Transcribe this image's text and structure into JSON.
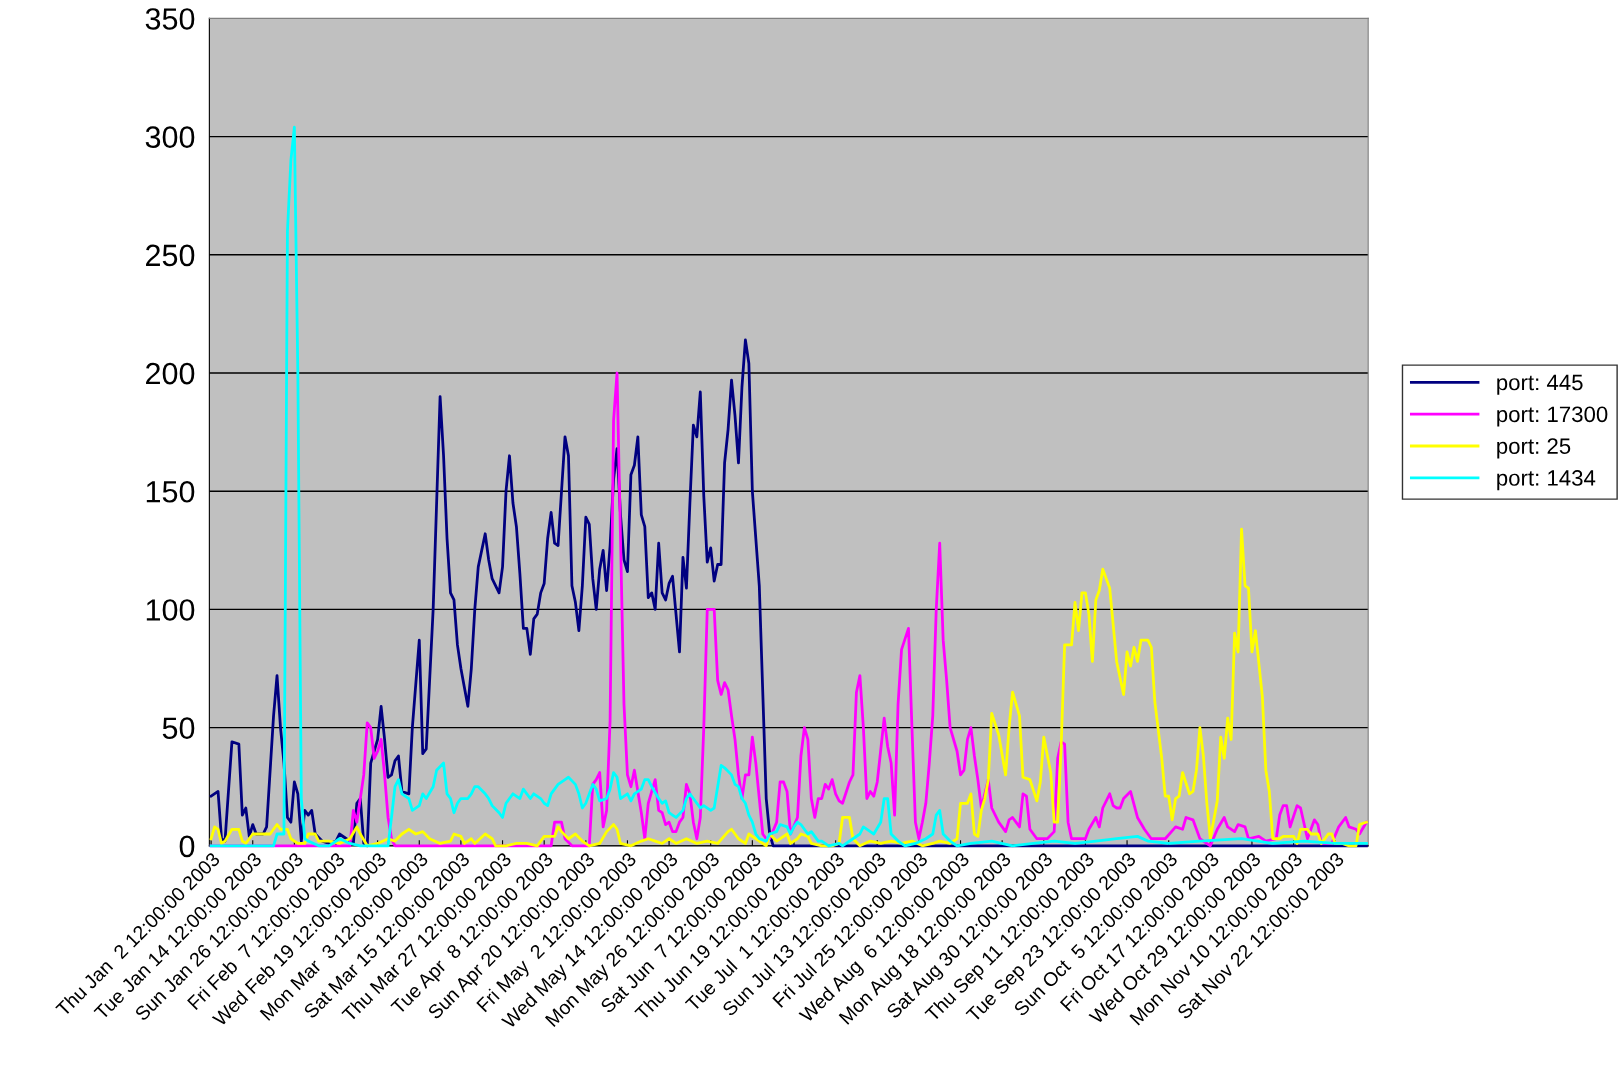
{
  "chart_data": {
    "type": "line",
    "ylim": [
      0,
      350
    ],
    "yticks": [
      0,
      50,
      100,
      150,
      200,
      250,
      300,
      350
    ],
    "xlim": [
      "2003-01-01T12:00",
      "2003-12-01T12:00"
    ],
    "xticks": [
      {
        "value": "2003-01-02",
        "label": "Thu Jan  2 12:00:00 2003"
      },
      {
        "value": "2003-01-14",
        "label": "Tue Jan 14 12:00:00 2003"
      },
      {
        "value": "2003-01-26",
        "label": "Sun Jan 26 12:00:00 2003"
      },
      {
        "value": "2003-02-07",
        "label": "Fri Feb  7 12:00:00 2003"
      },
      {
        "value": "2003-02-19",
        "label": "Wed Feb 19 12:00:00 2003"
      },
      {
        "value": "2003-03-03",
        "label": "Mon Mar  3 12:00:00 2003"
      },
      {
        "value": "2003-03-15",
        "label": "Sat Mar 15 12:00:00 2003"
      },
      {
        "value": "2003-03-27",
        "label": "Thu Mar 27 12:00:00 2003"
      },
      {
        "value": "2003-04-08",
        "label": "Tue Apr  8 12:00:00 2003"
      },
      {
        "value": "2003-04-20",
        "label": "Sun Apr 20 12:00:00 2003"
      },
      {
        "value": "2003-05-02",
        "label": "Fri May  2 12:00:00 2003"
      },
      {
        "value": "2003-05-14",
        "label": "Wed May 14 12:00:00 2003"
      },
      {
        "value": "2003-05-26",
        "label": "Mon May 26 12:00:00 2003"
      },
      {
        "value": "2003-06-07",
        "label": "Sat Jun  7 12:00:00 2003"
      },
      {
        "value": "2003-06-19",
        "label": "Thu Jun 19 12:00:00 2003"
      },
      {
        "value": "2003-07-01",
        "label": "Tue Jul  1 12:00:00 2003"
      },
      {
        "value": "2003-07-13",
        "label": "Sun Jul 13 12:00:00 2003"
      },
      {
        "value": "2003-07-25",
        "label": "Fri Jul 25 12:00:00 2003"
      },
      {
        "value": "2003-08-06",
        "label": "Wed Aug  6 12:00:00 2003"
      },
      {
        "value": "2003-08-18",
        "label": "Mon Aug 18 12:00:00 2003"
      },
      {
        "value": "2003-08-30",
        "label": "Sat Aug 30 12:00:00 2003"
      },
      {
        "value": "2003-09-11",
        "label": "Thu Sep 11 12:00:00 2003"
      },
      {
        "value": "2003-09-23",
        "label": "Tue Sep 23 12:00:00 2003"
      },
      {
        "value": "2003-10-05",
        "label": "Sun Oct  5 12:00:00 2003"
      },
      {
        "value": "2003-10-17",
        "label": "Fri Oct 17 12:00:00 2003"
      },
      {
        "value": "2003-10-29",
        "label": "Wed Oct 29 12:00:00 2003"
      },
      {
        "value": "2003-11-10",
        "label": "Mon Nov 10 12:00:00 2003"
      },
      {
        "value": "2003-11-22",
        "label": "Sat Nov 22 12:00:00 2003"
      }
    ],
    "grid": "y",
    "legend": "right",
    "marker": "none",
    "line_style": "solid",
    "series": [
      {
        "name": "port: 445",
        "color": "#000080",
        "x": [
          "2003-01-02",
          "2003-01-04",
          "2003-01-05",
          "2003-01-06",
          "2003-01-08",
          "2003-01-10",
          "2003-01-11",
          "2003-01-12",
          "2003-01-13",
          "2003-01-14",
          "2003-01-15",
          "2003-01-17",
          "2003-01-18",
          "2003-01-20",
          "2003-01-21",
          "2003-01-22",
          "2003-01-23",
          "2003-01-24",
          "2003-01-25",
          "2003-01-26",
          "2003-01-27",
          "2003-01-28",
          "2003-01-29",
          "2003-01-30",
          "2003-01-31",
          "2003-02-01",
          "2003-02-03",
          "2003-02-05",
          "2003-02-07",
          "2003-02-08",
          "2003-02-10",
          "2003-02-12",
          "2003-02-13",
          "2003-02-14",
          "2003-02-15",
          "2003-02-16",
          "2003-02-17",
          "2003-02-19",
          "2003-02-20",
          "2003-02-21",
          "2003-02-22",
          "2003-02-23",
          "2003-02-24",
          "2003-02-25",
          "2003-02-26",
          "2003-02-28",
          "2003-03-01",
          "2003-03-03",
          "2003-03-04",
          "2003-03-05",
          "2003-03-07",
          "2003-03-09",
          "2003-03-10",
          "2003-03-11",
          "2003-03-12",
          "2003-03-13",
          "2003-03-14",
          "2003-03-15",
          "2003-03-17",
          "2003-03-18",
          "2003-03-19",
          "2003-03-20",
          "2003-03-22",
          "2003-03-23",
          "2003-03-24",
          "2003-03-26",
          "2003-03-27",
          "2003-03-28",
          "2003-03-29",
          "2003-03-30",
          "2003-03-31",
          "2003-04-01",
          "2003-04-02",
          "2003-04-03",
          "2003-04-04",
          "2003-04-05",
          "2003-04-06",
          "2003-04-07",
          "2003-04-08",
          "2003-04-09",
          "2003-04-10",
          "2003-04-11",
          "2003-04-12",
          "2003-04-13",
          "2003-04-14",
          "2003-04-15",
          "2003-04-16",
          "2003-04-17",
          "2003-04-18",
          "2003-04-19",
          "2003-04-20",
          "2003-04-21",
          "2003-04-22",
          "2003-04-23",
          "2003-04-24",
          "2003-04-25",
          "2003-04-26",
          "2003-04-27",
          "2003-04-28",
          "2003-04-29",
          "2003-04-30",
          "2003-05-01",
          "2003-05-02",
          "2003-05-03",
          "2003-05-04",
          "2003-05-05",
          "2003-05-06",
          "2003-05-07",
          "2003-05-08",
          "2003-05-09",
          "2003-05-10",
          "2003-05-11",
          "2003-05-12",
          "2003-05-13",
          "2003-05-14",
          "2003-05-15",
          "2003-05-17",
          "2003-05-18",
          "2003-05-19",
          "2003-05-20",
          "2003-05-21",
          "2003-05-22",
          "2003-05-23",
          "2003-05-24",
          "2003-05-25",
          "2003-05-26",
          "2003-05-27",
          "2003-05-28",
          "2003-05-29",
          "2003-05-30",
          "2003-05-31",
          "2003-06-01",
          "2003-06-02",
          "2003-06-03",
          "2003-06-04",
          "2003-06-05",
          "2003-06-06",
          "2003-06-07",
          "2003-06-09",
          "2003-06-10",
          "2003-06-11",
          "2003-06-12",
          "2003-06-13",
          "2003-07-11",
          "2003-08-10",
          "2003-09-09",
          "2003-10-09",
          "2003-11-08",
          "2003-12-01"
        ],
        "values": [
          21,
          23,
          3,
          2,
          44,
          43,
          13,
          16,
          4,
          9,
          5,
          5,
          8,
          55,
          72,
          50,
          35,
          12,
          10,
          27,
          22,
          2,
          15,
          13,
          15,
          5,
          2,
          1,
          2,
          5,
          3,
          1,
          18,
          20,
          1,
          0,
          35,
          45,
          59,
          45,
          29,
          30,
          36,
          38,
          23,
          22,
          50,
          87,
          39,
          41,
          100,
          190,
          165,
          130,
          107,
          104,
          85,
          75,
          59,
          75,
          100,
          118,
          132,
          121,
          113,
          107,
          118,
          150,
          165,
          145,
          135,
          115,
          92,
          92,
          81,
          96,
          98,
          107,
          111,
          130,
          141,
          128,
          127,
          150,
          173,
          165,
          110,
          103,
          91,
          110,
          139,
          136,
          113,
          100,
          117,
          125,
          108,
          127,
          155,
          168,
          140,
          121,
          116,
          157,
          161,
          173,
          140,
          135,
          105,
          107,
          100,
          128,
          107,
          104,
          111,
          114,
          82,
          122,
          109,
          145,
          178,
          173,
          192,
          148,
          120,
          126,
          112,
          119,
          119,
          162,
          176,
          197,
          182,
          162,
          194,
          214,
          204,
          150,
          110,
          65,
          20,
          5,
          0,
          0,
          0,
          0,
          0,
          0,
          0
        ]
      },
      {
        "name": "port: 17300",
        "color": "#ff00ff",
        "x": [
          "2003-01-02",
          "2003-02-11",
          "2003-02-12",
          "2003-02-13",
          "2003-02-15",
          "2003-02-16",
          "2003-02-17",
          "2003-02-18",
          "2003-02-19",
          "2003-02-20",
          "2003-02-21",
          "2003-02-22",
          "2003-02-23",
          "2003-02-24",
          "2003-04-10",
          "2003-04-11",
          "2003-04-13",
          "2003-04-14",
          "2003-04-16",
          "2003-04-21",
          "2003-04-22",
          "2003-04-23",
          "2003-04-24",
          "2003-04-25",
          "2003-04-26",
          "2003-04-27",
          "2003-04-28",
          "2003-04-29",
          "2003-04-30",
          "2003-05-01",
          "2003-05-02",
          "2003-05-03",
          "2003-05-04",
          "2003-05-05",
          "2003-05-06",
          "2003-05-07",
          "2003-05-08",
          "2003-05-09",
          "2003-05-10",
          "2003-05-11",
          "2003-05-12",
          "2003-05-13",
          "2003-05-14",
          "2003-05-15",
          "2003-05-16",
          "2003-05-17",
          "2003-05-18",
          "2003-05-19",
          "2003-05-20",
          "2003-05-21",
          "2003-05-22",
          "2003-05-23",
          "2003-05-24",
          "2003-05-25",
          "2003-05-27",
          "2003-05-28",
          "2003-05-29",
          "2003-05-30",
          "2003-05-31",
          "2003-06-01",
          "2003-06-02",
          "2003-06-03",
          "2003-06-04",
          "2003-06-05",
          "2003-06-06",
          "2003-06-07",
          "2003-06-08",
          "2003-06-09",
          "2003-06-10",
          "2003-06-11",
          "2003-06-12",
          "2003-06-14",
          "2003-06-15",
          "2003-06-16",
          "2003-06-17",
          "2003-06-18",
          "2003-06-20",
          "2003-06-21",
          "2003-06-22",
          "2003-06-23",
          "2003-06-24",
          "2003-06-25",
          "2003-06-26",
          "2003-06-27",
          "2003-06-28",
          "2003-06-29",
          "2003-06-30",
          "2003-07-01",
          "2003-07-02",
          "2003-07-03",
          "2003-07-05",
          "2003-07-06",
          "2003-07-07",
          "2003-07-08",
          "2003-07-09",
          "2003-07-10",
          "2003-07-11",
          "2003-07-12",
          "2003-07-13",
          "2003-07-15",
          "2003-07-16",
          "2003-07-17",
          "2003-07-18",
          "2003-07-19",
          "2003-07-20",
          "2003-07-22",
          "2003-07-23",
          "2003-07-24",
          "2003-07-25",
          "2003-07-26",
          "2003-07-27",
          "2003-07-28",
          "2003-07-29",
          "2003-07-30",
          "2003-07-31",
          "2003-08-01",
          "2003-08-02",
          "2003-08-03",
          "2003-08-05",
          "2003-08-06",
          "2003-08-07",
          "2003-08-08",
          "2003-08-09",
          "2003-08-10",
          "2003-08-11",
          "2003-08-12",
          "2003-08-13",
          "2003-08-14",
          "2003-08-15",
          "2003-08-17",
          "2003-08-19",
          "2003-08-20",
          "2003-08-21",
          "2003-08-23",
          "2003-08-24",
          "2003-08-25",
          "2003-08-26",
          "2003-08-28",
          "2003-08-31",
          "2003-09-02",
          "2003-09-03",
          "2003-09-04",
          "2003-09-05",
          "2003-09-06",
          "2003-09-07",
          "2003-09-11",
          "2003-09-12",
          "2003-09-14",
          "2003-09-15",
          "2003-09-16",
          "2003-09-18",
          "2003-09-19",
          "2003-09-20",
          "2003-09-21",
          "2003-09-22",
          "2003-09-24",
          "2003-09-26",
          "2003-09-28",
          "2003-09-30",
          "2003-10-02",
          "2003-10-04",
          "2003-10-07",
          "2003-10-09",
          "2003-10-10",
          "2003-10-12",
          "2003-10-14",
          "2003-10-17",
          "2003-10-19",
          "2003-10-21",
          "2003-10-22",
          "2003-10-24",
          "2003-10-25",
          "2003-10-27",
          "2003-10-28",
          "2003-10-31",
          "2003-11-02",
          "2003-11-05",
          "2003-11-06",
          "2003-11-07",
          "2003-11-08",
          "2003-11-09",
          "2003-11-11",
          "2003-11-12",
          "2003-11-14",
          "2003-11-16",
          "2003-11-17",
          "2003-11-18",
          "2003-11-21",
          "2003-11-23",
          "2003-11-25",
          "2003-11-26",
          "2003-11-28",
          "2003-11-29",
          "2003-12-01"
        ],
        "values": [
          0,
          0,
          15,
          10,
          30,
          52,
          50,
          37,
          40,
          45,
          30,
          12,
          3,
          0,
          0,
          10,
          10,
          3,
          0,
          0,
          26,
          28,
          31,
          8,
          15,
          53,
          180,
          200,
          130,
          60,
          30,
          25,
          32,
          23,
          14,
          3,
          18,
          23,
          28,
          15,
          14,
          9,
          10,
          6,
          6,
          10,
          12,
          26,
          22,
          10,
          3,
          12,
          50,
          100,
          100,
          70,
          64,
          69,
          66,
          55,
          45,
          30,
          20,
          30,
          30,
          46,
          35,
          20,
          5,
          3,
          3,
          10,
          27,
          27,
          23,
          5,
          12,
          38,
          50,
          45,
          20,
          12,
          20,
          20,
          26,
          24,
          28,
          22,
          19,
          18,
          27,
          30,
          65,
          72,
          50,
          20,
          23,
          21,
          27,
          54,
          42,
          35,
          13,
          60,
          83,
          92,
          50,
          10,
          3,
          10,
          18,
          35,
          55,
          100,
          128,
          87,
          70,
          50,
          40,
          30,
          32,
          45,
          50,
          38,
          28,
          16,
          22,
          28,
          16,
          10,
          6,
          11,
          12,
          8,
          22,
          21,
          7,
          3,
          3,
          6,
          37,
          44,
          43,
          10,
          3,
          3,
          7,
          12,
          8,
          16,
          22,
          17,
          16,
          16,
          20,
          23,
          12,
          7,
          3,
          3,
          3,
          8,
          7,
          12,
          11,
          3,
          0,
          7,
          12,
          8,
          6,
          9,
          8,
          3,
          4,
          2,
          3,
          13,
          17,
          17,
          8,
          17,
          16,
          3,
          11,
          9,
          1,
          1,
          8,
          12,
          8,
          7,
          5,
          10
        ]
      },
      {
        "name": "port: 25",
        "color": "#ffff00",
        "x": [
          "2003-01-02",
          "2003-01-03",
          "2003-01-04",
          "2003-01-05",
          "2003-01-06",
          "2003-01-08",
          "2003-01-10",
          "2003-01-11",
          "2003-01-12",
          "2003-01-14",
          "2003-01-17",
          "2003-01-19",
          "2003-01-21",
          "2003-01-22",
          "2003-01-24",
          "2003-01-25",
          "2003-01-27",
          "2003-01-29",
          "2003-01-30",
          "2003-02-01",
          "2003-02-02",
          "2003-02-05",
          "2003-02-08",
          "2003-02-11",
          "2003-02-13",
          "2003-02-14",
          "2003-02-16",
          "2003-02-19",
          "2003-02-22",
          "2003-02-24",
          "2003-02-26",
          "2003-02-28",
          "2003-03-02",
          "2003-03-04",
          "2003-03-06",
          "2003-03-09",
          "2003-03-12",
          "2003-03-13",
          "2003-03-15",
          "2003-03-16",
          "2003-03-18",
          "2003-03-19",
          "2003-03-22",
          "2003-03-24",
          "2003-03-25",
          "2003-03-28",
          "2003-03-31",
          "2003-04-03",
          "2003-04-06",
          "2003-04-08",
          "2003-04-11",
          "2003-04-12",
          "2003-04-13",
          "2003-04-15",
          "2003-04-17",
          "2003-04-19",
          "2003-04-21",
          "2003-04-24",
          "2003-04-26",
          "2003-04-28",
          "2003-04-29",
          "2003-04-30",
          "2003-05-03",
          "2003-05-06",
          "2003-05-08",
          "2003-05-10",
          "2003-05-12",
          "2003-05-14",
          "2003-05-16",
          "2003-05-19",
          "2003-05-22",
          "2003-05-25",
          "2003-05-28",
          "2003-05-31",
          "2003-06-01",
          "2003-06-03",
          "2003-06-05",
          "2003-06-06",
          "2003-06-09",
          "2003-06-11",
          "2003-06-12",
          "2003-06-14",
          "2003-06-17",
          "2003-06-18",
          "2003-06-20",
          "2003-06-21",
          "2003-06-23",
          "2003-06-24",
          "2003-06-27",
          "2003-06-30",
          "2003-07-02",
          "2003-07-03",
          "2003-07-05",
          "2003-07-06",
          "2003-07-08",
          "2003-07-11",
          "2003-07-14",
          "2003-07-17",
          "2003-07-20",
          "2003-07-23",
          "2003-07-26",
          "2003-07-29",
          "2003-07-31",
          "2003-08-03",
          "2003-08-05",
          "2003-08-06",
          "2003-08-08",
          "2003-08-09",
          "2003-08-10",
          "2003-08-11",
          "2003-08-12",
          "2003-08-13",
          "2003-08-14",
          "2003-08-15",
          "2003-08-17",
          "2003-08-19",
          "2003-08-20",
          "2003-08-21",
          "2003-08-23",
          "2003-08-24",
          "2003-08-26",
          "2003-08-28",
          "2003-08-29",
          "2003-08-30",
          "2003-09-01",
          "2003-09-02",
          "2003-09-03",
          "2003-09-04",
          "2003-09-05",
          "2003-09-07",
          "2003-09-08",
          "2003-09-09",
          "2003-09-10",
          "2003-09-11",
          "2003-09-12",
          "2003-09-13",
          "2003-09-14",
          "2003-09-15",
          "2003-09-16",
          "2003-09-18",
          "2003-09-20",
          "2003-09-22",
          "2003-09-23",
          "2003-09-24",
          "2003-09-25",
          "2003-09-26",
          "2003-09-27",
          "2003-09-29",
          "2003-09-30",
          "2003-10-01",
          "2003-10-03",
          "2003-10-04",
          "2003-10-05",
          "2003-10-06",
          "2003-10-07",
          "2003-10-08",
          "2003-10-09",
          "2003-10-11",
          "2003-10-12",
          "2003-10-13",
          "2003-10-14",
          "2003-10-15",
          "2003-10-16",
          "2003-10-17",
          "2003-10-19",
          "2003-10-20",
          "2003-10-21",
          "2003-10-22",
          "2003-10-23",
          "2003-10-24",
          "2003-10-25",
          "2003-10-26",
          "2003-10-27",
          "2003-10-28",
          "2003-10-29",
          "2003-10-30",
          "2003-11-01",
          "2003-11-02",
          "2003-11-03",
          "2003-11-04",
          "2003-11-06",
          "2003-11-07",
          "2003-11-10",
          "2003-11-11",
          "2003-11-12",
          "2003-11-14",
          "2003-11-15",
          "2003-11-17",
          "2003-11-18",
          "2003-11-20",
          "2003-11-21",
          "2003-11-22",
          "2003-11-24",
          "2003-11-26",
          "2003-11-28",
          "2003-11-29",
          "2003-12-01"
        ],
        "values": [
          3,
          8,
          7,
          1,
          2,
          7,
          7,
          2,
          1,
          5,
          5,
          5,
          9,
          7,
          7,
          3,
          1,
          1,
          5,
          5,
          2,
          2,
          1,
          3,
          8,
          5,
          0,
          1,
          3,
          2,
          5,
          7,
          5,
          6,
          3,
          1,
          2,
          5,
          4,
          1,
          3,
          1,
          5,
          3,
          0,
          0,
          1,
          1,
          0,
          4,
          4,
          8,
          6,
          3,
          5,
          2,
          0,
          1,
          6,
          9,
          7,
          1,
          0,
          2,
          3,
          2,
          1,
          3,
          1,
          3,
          1,
          2,
          1,
          6,
          7,
          3,
          1,
          5,
          2,
          0,
          5,
          2,
          5,
          1,
          3,
          5,
          4,
          1,
          0,
          0,
          1,
          12,
          12,
          3,
          0,
          2,
          1,
          2,
          1,
          2,
          0,
          1,
          2,
          1,
          3,
          18,
          18,
          22,
          5,
          4,
          15,
          20,
          28,
          56,
          47,
          30,
          50,
          65,
          55,
          29,
          28,
          19,
          27,
          46,
          31,
          10,
          10,
          42,
          85,
          85,
          103,
          91,
          107,
          107,
          98,
          78,
          104,
          108,
          117,
          109,
          78,
          64,
          82,
          76,
          84,
          78,
          87,
          87,
          84,
          61,
          37,
          21,
          21,
          11,
          20,
          21,
          31,
          22,
          23,
          32,
          50,
          38,
          18,
          3,
          19,
          46,
          37,
          54,
          45,
          90,
          82,
          134,
          110,
          109,
          82,
          91,
          63,
          32,
          23,
          3,
          3,
          4,
          4,
          1,
          7,
          7,
          5,
          5,
          1,
          5,
          5,
          1,
          1,
          0,
          0,
          9,
          10
        ]
      },
      {
        "name": "port: 1434",
        "color": "#00ffff",
        "x": [
          "2003-01-02",
          "2003-01-20",
          "2003-01-21",
          "2003-01-23",
          "2003-01-24",
          "2003-01-25",
          "2003-01-26",
          "2003-01-27",
          "2003-01-28",
          "2003-01-29",
          "2003-01-30",
          "2003-02-02",
          "2003-02-05",
          "2003-02-08",
          "2003-02-11",
          "2003-02-14",
          "2003-02-22",
          "2003-02-23",
          "2003-02-24",
          "2003-02-25",
          "2003-02-26",
          "2003-02-28",
          "2003-03-01",
          "2003-03-03",
          "2003-03-04",
          "2003-03-05",
          "2003-03-07",
          "2003-03-08",
          "2003-03-10",
          "2003-03-11",
          "2003-03-12",
          "2003-03-13",
          "2003-03-14",
          "2003-03-15",
          "2003-03-17",
          "2003-03-18",
          "2003-03-19",
          "2003-03-20",
          "2003-03-22",
          "2003-03-23",
          "2003-03-24",
          "2003-03-26",
          "2003-03-27",
          "2003-03-28",
          "2003-03-29",
          "2003-03-30",
          "2003-04-01",
          "2003-04-02",
          "2003-04-03",
          "2003-04-04",
          "2003-04-05",
          "2003-04-07",
          "2003-04-08",
          "2003-04-09",
          "2003-04-10",
          "2003-04-12",
          "2003-04-14",
          "2003-04-15",
          "2003-04-17",
          "2003-04-18",
          "2003-04-19",
          "2003-04-20",
          "2003-04-22",
          "2003-04-23",
          "2003-04-24",
          "2003-04-26",
          "2003-04-27",
          "2003-04-28",
          "2003-04-29",
          "2003-04-30",
          "2003-05-02",
          "2003-05-03",
          "2003-05-04",
          "2003-05-06",
          "2003-05-07",
          "2003-05-08",
          "2003-05-09",
          "2003-05-11",
          "2003-05-12",
          "2003-05-13",
          "2003-05-14",
          "2003-05-15",
          "2003-05-16",
          "2003-05-18",
          "2003-05-19",
          "2003-05-20",
          "2003-05-21",
          "2003-05-22",
          "2003-05-23",
          "2003-05-24",
          "2003-05-26",
          "2003-05-27",
          "2003-05-28",
          "2003-05-29",
          "2003-05-30",
          "2003-06-01",
          "2003-06-02",
          "2003-06-03",
          "2003-06-04",
          "2003-06-05",
          "2003-06-06",
          "2003-06-07",
          "2003-06-08",
          "2003-06-09",
          "2003-06-11",
          "2003-06-12",
          "2003-06-14",
          "2003-06-15",
          "2003-06-17",
          "2003-06-18",
          "2003-06-19",
          "2003-06-20",
          "2003-06-21",
          "2003-06-23",
          "2003-06-24",
          "2003-06-26",
          "2003-06-27",
          "2003-06-29",
          "2003-07-02",
          "2003-07-03",
          "2003-07-06",
          "2003-07-08",
          "2003-07-09",
          "2003-07-11",
          "2003-07-12",
          "2003-07-14",
          "2003-07-15",
          "2003-07-16",
          "2003-07-17",
          "2003-07-19",
          "2003-07-21",
          "2003-07-24",
          "2003-07-27",
          "2003-07-29",
          "2003-07-30",
          "2003-07-31",
          "2003-08-01",
          "2003-08-03",
          "2003-08-05",
          "2003-08-09",
          "2003-08-15",
          "2003-08-21",
          "2003-08-27",
          "2003-09-02",
          "2003-09-08",
          "2003-09-14",
          "2003-09-20",
          "2003-09-26",
          "2003-09-29",
          "2003-10-05",
          "2003-10-14",
          "2003-10-26",
          "2003-11-04",
          "2003-11-13",
          "2003-11-22",
          "2003-12-01"
        ],
        "values": [
          0,
          0,
          5,
          5,
          260,
          290,
          304,
          200,
          20,
          3,
          2,
          0,
          0,
          3,
          1,
          0,
          0,
          12,
          25,
          28,
          22,
          20,
          15,
          17,
          22,
          20,
          25,
          32,
          35,
          22,
          20,
          14,
          18,
          20,
          20,
          22,
          25,
          25,
          22,
          20,
          17,
          14,
          12,
          18,
          20,
          22,
          20,
          24,
          22,
          20,
          22,
          20,
          18,
          17,
          22,
          26,
          28,
          29,
          26,
          22,
          16,
          18,
          26,
          24,
          19,
          20,
          24,
          31,
          29,
          20,
          22,
          19,
          22,
          24,
          28,
          28,
          25,
          20,
          18,
          19,
          14,
          13,
          12,
          15,
          20,
          22,
          20,
          18,
          16,
          17,
          15,
          16,
          25,
          34,
          33,
          30,
          26,
          25,
          20,
          18,
          13,
          10,
          5,
          3,
          2,
          5,
          6,
          9,
          8,
          5,
          8,
          10,
          9,
          5,
          6,
          2,
          2,
          0,
          1,
          0,
          3,
          5,
          8,
          6,
          5,
          10,
          20,
          20,
          5,
          2,
          0,
          1,
          3,
          5,
          13,
          15,
          5,
          2,
          0,
          1,
          2,
          0,
          1,
          2,
          1,
          2,
          3,
          4,
          2,
          1,
          2,
          3,
          1,
          2,
          1,
          1
        ]
      }
    ]
  }
}
